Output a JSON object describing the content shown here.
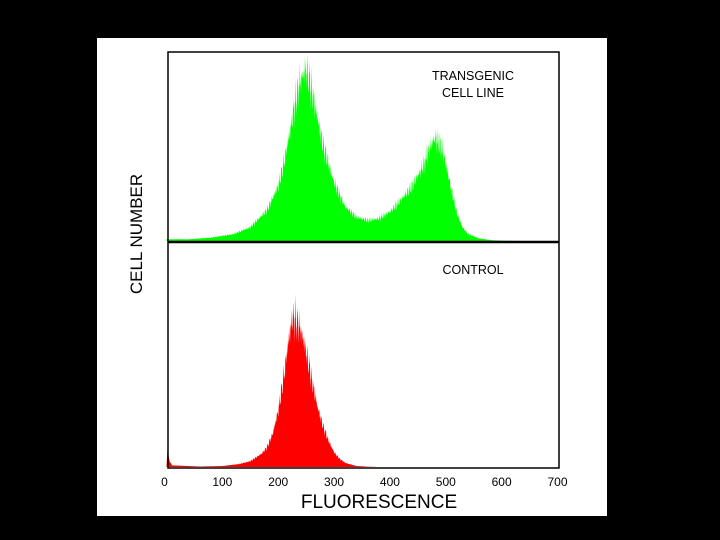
{
  "chart_data": {
    "type": "area",
    "xlabel": "FLUORESCENCE",
    "ylabel": "CELL NUMBER",
    "xlim": [
      0,
      700
    ],
    "x_ticks": [
      0,
      100,
      200,
      300,
      400,
      500,
      600,
      700
    ],
    "grid": false,
    "panels": [
      {
        "label_lines": [
          "TRANSGENIC",
          "CELL LINE"
        ],
        "color": "#00ff00",
        "x": [
          0,
          40,
          80,
          120,
          150,
          180,
          200,
          210,
          220,
          230,
          240,
          250,
          260,
          270,
          280,
          300,
          320,
          340,
          360,
          380,
          400,
          420,
          440,
          460,
          470,
          480,
          490,
          500,
          510,
          520,
          530,
          540,
          560,
          580,
          600,
          640,
          700
        ],
        "values": [
          0.01,
          0.01,
          0.02,
          0.04,
          0.08,
          0.18,
          0.32,
          0.45,
          0.62,
          0.8,
          0.94,
          1.0,
          0.88,
          0.72,
          0.56,
          0.34,
          0.2,
          0.14,
          0.12,
          0.13,
          0.17,
          0.24,
          0.32,
          0.44,
          0.53,
          0.6,
          0.56,
          0.45,
          0.3,
          0.16,
          0.08,
          0.04,
          0.015,
          0.005,
          0.002,
          0.0,
          0.0
        ]
      },
      {
        "label_lines": [
          "CONTROL"
        ],
        "color": "#ff0000",
        "x": [
          0,
          2,
          5,
          10,
          60,
          100,
          130,
          150,
          170,
          180,
          190,
          200,
          210,
          220,
          225,
          230,
          240,
          250,
          260,
          270,
          280,
          290,
          300,
          310,
          320,
          340,
          360,
          380,
          400,
          700
        ],
        "values": [
          0.0,
          0.12,
          0.04,
          0.01,
          0.003,
          0.006,
          0.018,
          0.035,
          0.08,
          0.12,
          0.2,
          0.34,
          0.55,
          0.8,
          0.9,
          0.9,
          0.84,
          0.7,
          0.53,
          0.37,
          0.25,
          0.16,
          0.09,
          0.05,
          0.025,
          0.006,
          0.002,
          0.0,
          0.0,
          0.0
        ]
      }
    ]
  }
}
